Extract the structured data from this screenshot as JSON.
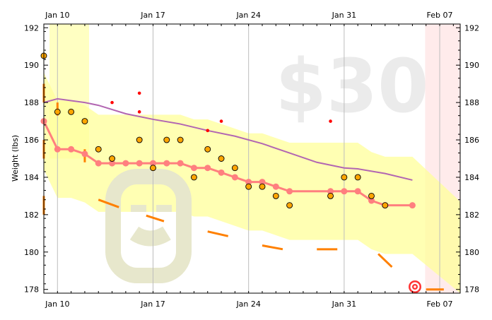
{
  "chart_data": {
    "type": "line",
    "ylabel": "Weight (lbs)",
    "ylim": [
      177.8,
      192.2
    ],
    "yticks": [
      178,
      180,
      182,
      184,
      186,
      188,
      190,
      192
    ],
    "xlim": [
      "2016-01-09 00:00",
      "2016-02-08 12:00"
    ],
    "xticks": [
      {
        "date": "2016-01-10",
        "label": "Jan 10"
      },
      {
        "date": "2016-01-17",
        "label": "Jan 17"
      },
      {
        "date": "2016-01-24",
        "label": "Jan 24"
      },
      {
        "date": "2016-01-31",
        "label": "Jan 31"
      },
      {
        "date": "2016-02-07",
        "label": "Feb 07"
      }
    ],
    "watermark": "$30",
    "colors": {
      "band": "#ffff99",
      "datapoint": "#ffa500",
      "moving_average": "#ff7f7f",
      "trend": "#b266b2",
      "road": "#ff8000",
      "outlier": "#ff0000",
      "future": "#ffe6e6"
    },
    "series": [
      {
        "kind": "datapoints",
        "points": [
          [
            "2016-01-09",
            190.5
          ],
          [
            "2016-01-10",
            187.5
          ],
          [
            "2016-01-11",
            187.5
          ],
          [
            "2016-01-12",
            187.0
          ],
          [
            "2016-01-13",
            185.5
          ],
          [
            "2016-01-14",
            185.0
          ],
          [
            "2016-01-16",
            186.0
          ],
          [
            "2016-01-17",
            184.5
          ],
          [
            "2016-01-18",
            186.0
          ],
          [
            "2016-01-19",
            186.0
          ],
          [
            "2016-01-20",
            184.0
          ],
          [
            "2016-01-21",
            185.5
          ],
          [
            "2016-01-22",
            185.0
          ],
          [
            "2016-01-23",
            184.5
          ],
          [
            "2016-01-24",
            183.5
          ],
          [
            "2016-01-25",
            183.5
          ],
          [
            "2016-01-26",
            183.0
          ],
          [
            "2016-01-27",
            182.5
          ],
          [
            "2016-01-30",
            183.0
          ],
          [
            "2016-01-31",
            184.0
          ],
          [
            "2016-02-01",
            184.0
          ],
          [
            "2016-02-02",
            183.0
          ],
          [
            "2016-02-03",
            182.5
          ]
        ]
      },
      {
        "kind": "moving-average",
        "points": [
          [
            "2016-01-09",
            187.0
          ],
          [
            "2016-01-10",
            185.5
          ],
          [
            "2016-01-11",
            185.5
          ],
          [
            "2016-01-12",
            185.25
          ],
          [
            "2016-01-13",
            184.75
          ],
          [
            "2016-01-14",
            184.75
          ],
          [
            "2016-01-15",
            184.75
          ],
          [
            "2016-01-16",
            184.75
          ],
          [
            "2016-01-17",
            184.75
          ],
          [
            "2016-01-18",
            184.75
          ],
          [
            "2016-01-19",
            184.75
          ],
          [
            "2016-01-20",
            184.5
          ],
          [
            "2016-01-21",
            184.5
          ],
          [
            "2016-01-22",
            184.25
          ],
          [
            "2016-01-23",
            184.0
          ],
          [
            "2016-01-24",
            183.75
          ],
          [
            "2016-01-25",
            183.75
          ],
          [
            "2016-01-26",
            183.5
          ],
          [
            "2016-01-27",
            183.25
          ],
          [
            "2016-01-30",
            183.25
          ],
          [
            "2016-01-31",
            183.25
          ],
          [
            "2016-02-01",
            183.25
          ],
          [
            "2016-02-02",
            182.75
          ],
          [
            "2016-02-03",
            182.5
          ],
          [
            "2016-02-05",
            182.5
          ]
        ]
      },
      {
        "kind": "trend",
        "points": [
          [
            "2016-01-09",
            188.0
          ],
          [
            "2016-01-10",
            188.2
          ],
          [
            "2016-01-12",
            188.0
          ],
          [
            "2016-01-13",
            187.85
          ],
          [
            "2016-01-15",
            187.4
          ],
          [
            "2016-01-17",
            187.1
          ],
          [
            "2016-01-19",
            186.85
          ],
          [
            "2016-01-21",
            186.5
          ],
          [
            "2016-01-23",
            186.2
          ],
          [
            "2016-01-25",
            185.8
          ],
          [
            "2016-01-27",
            185.3
          ],
          [
            "2016-01-29",
            184.8
          ],
          [
            "2016-01-31",
            184.5
          ],
          [
            "2016-02-01",
            184.45
          ],
          [
            "2016-02-03",
            184.2
          ],
          [
            "2016-02-05",
            183.85
          ]
        ]
      },
      {
        "kind": "outliers",
        "points": [
          [
            "2016-01-14",
            188.0
          ],
          [
            "2016-01-16",
            188.5
          ],
          [
            "2016-01-16",
            187.5
          ],
          [
            "2016-01-21",
            186.5
          ],
          [
            "2016-01-22",
            187.0
          ],
          [
            "2016-01-30",
            187.0
          ]
        ]
      },
      {
        "kind": "road-dashes",
        "points": [
          [
            "2016-01-09",
            189.0
          ],
          [
            "2016-01-09",
            188.0
          ],
          [
            "2016-01-09",
            185.0
          ],
          [
            "2016-01-09",
            186.0
          ],
          [
            "2016-01-09",
            182.0
          ],
          [
            "2016-01-09",
            183.0
          ],
          [
            "2016-01-10",
            188.0
          ],
          [
            "2016-01-10",
            187.3
          ],
          [
            "2016-01-12",
            184.8
          ],
          [
            "2016-01-12",
            185.5
          ],
          [
            "2016-01-13",
            182.8
          ],
          [
            "2016-01-14.5",
            182.4
          ],
          [
            "2016-01-16.5",
            181.95
          ],
          [
            "2016-01-17.8",
            181.65
          ],
          [
            "2016-01-21",
            181.1
          ],
          [
            "2016-01-22.5",
            180.85
          ],
          [
            "2016-01-25",
            180.35
          ],
          [
            "2016-01-26.5",
            180.15
          ],
          [
            "2016-01-29",
            180.15
          ],
          [
            "2016-01-30.5",
            180.15
          ],
          [
            "2016-02-02.5",
            179.9
          ],
          [
            "2016-02-03.5",
            179.2
          ],
          [
            "2016-02-06",
            178.0
          ],
          [
            "2016-02-07.3",
            178.0
          ]
        ]
      }
    ]
  }
}
